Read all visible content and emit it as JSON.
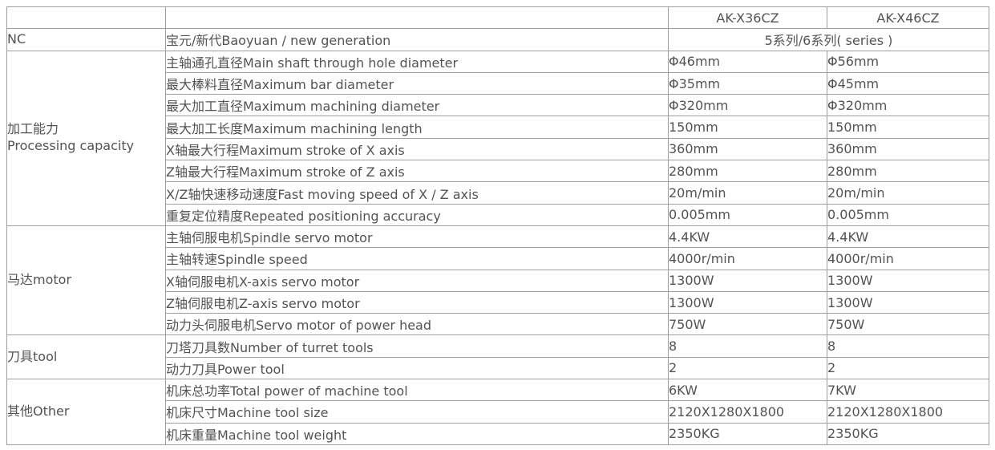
{
  "colors": {
    "row_shade": "#d3d3d3",
    "border": "#9e9e9e",
    "text": "#535353",
    "background": "#ffffff"
  },
  "header": {
    "model1": "AK-X36CZ",
    "model2": "AK-X46CZ"
  },
  "nc": {
    "category": "NC",
    "spec": "宝元/新代Baoyuan / new generation",
    "value": "5系列/6系列( series )"
  },
  "sections": [
    {
      "category": "加工能力",
      "category_en": "Processing capacity",
      "shaded": true,
      "rows": [
        {
          "spec": "主轴通孔直径Main shaft through hole diameter",
          "v1": "Φ46mm",
          "v2": "Φ56mm"
        },
        {
          "spec": "最大棒料直径Maximum bar diameter",
          "v1": "Φ35mm",
          "v2": "Φ45mm"
        },
        {
          "spec": "最大加工直径Maximum machining diameter",
          "v1": "Φ320mm",
          "v2": "Φ320mm"
        },
        {
          "spec": "最大加工长度Maximum machining length",
          "v1": "150mm",
          "v2": "150mm"
        },
        {
          "spec": "X轴最大行程Maximum stroke of X axis",
          "v1": "360mm",
          "v2": "360mm"
        },
        {
          "spec": "Z轴最大行程Maximum stroke of Z axis",
          "v1": "280mm",
          "v2": "280mm"
        },
        {
          "spec": "X/Z轴快速移动速度Fast moving speed of X / Z axis",
          "v1": "20m/min",
          "v2": "20m/min"
        },
        {
          "spec": "重复定位精度Repeated positioning accuracy",
          "v1": "0.005mm",
          "v2": "0.005mm"
        }
      ]
    },
    {
      "category": "马达motor",
      "category_en": "",
      "shaded": false,
      "rows": [
        {
          "spec": "主轴伺服电机Spindle servo motor",
          "v1": "4.4KW",
          "v2": "4.4KW"
        },
        {
          "spec": "主轴转速Spindle speed",
          "v1": "4000r/min",
          "v2": "4000r/min"
        },
        {
          "spec": "X轴伺服电机X-axis servo motor",
          "v1": "1300W",
          "v2": "1300W"
        },
        {
          "spec": "Z轴伺服电机Z-axis servo motor",
          "v1": "1300W",
          "v2": "1300W"
        },
        {
          "spec": "动力头伺服电机Servo motor of power head",
          "v1": "750W",
          "v2": "750W"
        }
      ]
    },
    {
      "category": "刀具tool",
      "category_en": "",
      "shaded": true,
      "rows": [
        {
          "spec": "刀塔刀具数Number of turret tools",
          "v1": "8",
          "v2": "8"
        },
        {
          "spec": "动力刀具Power tool",
          "v1": "2",
          "v2": "2"
        }
      ]
    },
    {
      "category": "其他Other",
      "category_en": "",
      "shaded": false,
      "rows": [
        {
          "spec": "机床总功率Total power of machine tool",
          "v1": "6KW",
          "v2": "7KW"
        },
        {
          "spec": "机床尺寸Machine tool size",
          "v1": "2120X1280X1800",
          "v2": "2120X1280X1800"
        },
        {
          "spec": "机床重量Machine tool weight",
          "v1": "2350KG",
          "v2": "2350KG"
        }
      ]
    }
  ]
}
